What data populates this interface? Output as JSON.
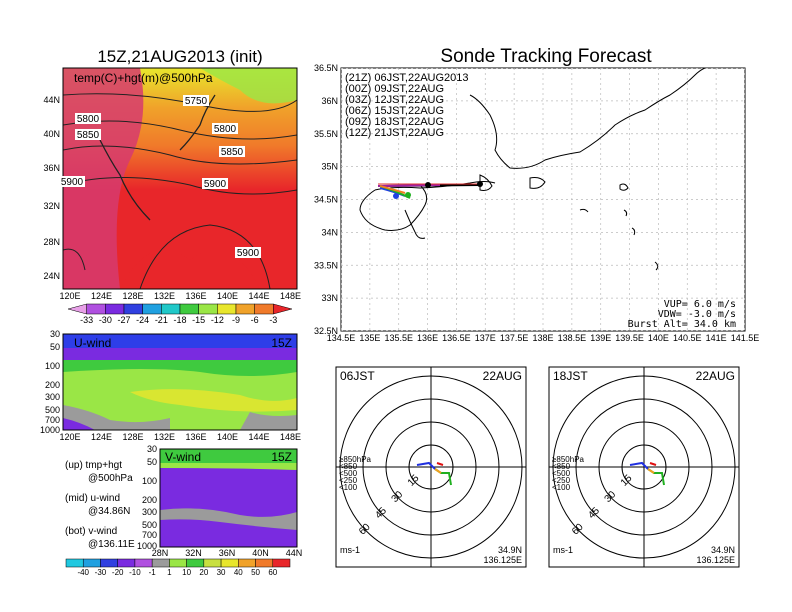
{
  "titles": {
    "left": "15Z,21AUG2013 (init)",
    "right": "Sonde Tracking Forecast"
  },
  "colors": {
    "warm_red": "#e8262a",
    "warm_magenta": "#d63b6f",
    "orange": "#f07a2a",
    "yellow": "#e8e62c",
    "light_green": "#9ae646",
    "green": "#3fca3f",
    "blue": "#2e3ee8",
    "purple": "#7a2be0",
    "gray": "#9b9b9b"
  },
  "top_map": {
    "label": "temp(C)+hgt(m)@500hPa",
    "lat_labels": [
      "44N",
      "40N",
      "36N",
      "32N",
      "28N",
      "24N"
    ],
    "lon_labels": [
      "120E",
      "124E",
      "128E",
      "132E",
      "136E",
      "140E",
      "144E",
      "148E"
    ],
    "contours": [
      "5750",
      "5800",
      "5800",
      "5850",
      "5850",
      "5900",
      "5900",
      "5900"
    ],
    "colorbar": [
      "-33",
      "-30",
      "-27",
      "-24",
      "-21",
      "-18",
      "-15",
      "-12",
      "-9",
      "-6",
      "-3"
    ]
  },
  "uwind": {
    "label": "U-wind",
    "time": "15Z",
    "p_labels": [
      "30",
      "50",
      "100",
      "200",
      "300",
      "500",
      "700",
      "1000"
    ],
    "lon_labels": [
      "120E",
      "124E",
      "128E",
      "132E",
      "136E",
      "140E",
      "144E",
      "148E"
    ]
  },
  "vwind": {
    "label": "V-wind",
    "time": "15Z",
    "p_labels": [
      "30",
      "50",
      "100",
      "200",
      "300",
      "500",
      "700",
      "1000"
    ],
    "lat_labels": [
      "28N",
      "32N",
      "36N",
      "40N",
      "44N"
    ]
  },
  "wind_colorbar": [
    "-40",
    "-30",
    "-20",
    "-10",
    "-1",
    "1",
    "10",
    "20",
    "30",
    "40",
    "50",
    "60"
  ],
  "legend_notes": {
    "up1": "(up) tmp+hgt",
    "up2": "@500hPa",
    "mid1": "(mid) u-wind",
    "mid2": "@34.86N",
    "bot1": "(bot) v-wind",
    "bot2": "@136.11E"
  },
  "track_map": {
    "lat_labels": [
      "36.5N",
      "36N",
      "35.5N",
      "35N",
      "34.5N",
      "34N",
      "33.5N",
      "33N",
      "32.5N"
    ],
    "lon_labels": [
      "134.5E",
      "135E",
      "135.5E",
      "136E",
      "136.5E",
      "137E",
      "137.5E",
      "138E",
      "138.5E",
      "139E",
      "139.5E",
      "140E",
      "140.5E",
      "141E",
      "141.5E"
    ],
    "legend": [
      {
        "text": "(21Z) 06JST,22AUG2013",
        "color": "#000000"
      },
      {
        "text": "(00Z) 09JST,22AUG",
        "color": "#a020a0"
      },
      {
        "text": "(03Z) 12JST,22AUG",
        "color": "#2040e0"
      },
      {
        "text": "(06Z) 15JST,22AUG",
        "color": "#20b020"
      },
      {
        "text": "(09Z) 18JST,22AUG",
        "color": "#e0c000"
      },
      {
        "text": "(12Z) 21JST,22AUG",
        "color": "#f08020"
      }
    ],
    "params": {
      "vup": "VUP= 6.0 m/s",
      "vdw": "VDW= -3.0 m/s",
      "burst": "Burst Alt= 34.0 km"
    }
  },
  "hodo_left": {
    "time": "06JST",
    "date": "22AUG",
    "rings": [
      "15",
      "30",
      "45",
      "60"
    ],
    "levels": [
      {
        "text": "≥850hPa",
        "color": "#e01010"
      },
      {
        "text": "<850",
        "color": "#f0a020"
      },
      {
        "text": "<500",
        "color": "#20b020"
      },
      {
        "text": "<250",
        "color": "#20a0e0"
      },
      {
        "text": "<100",
        "color": "#2030e0"
      }
    ],
    "unit": "ms-1",
    "lat": "34.9N",
    "lon": "136.125E"
  },
  "hodo_right": {
    "time": "18JST",
    "date": "22AUG",
    "rings": [
      "15",
      "30",
      "45",
      "60"
    ],
    "levels": [
      {
        "text": "≥850hPa",
        "color": "#e01010"
      },
      {
        "text": "<850",
        "color": "#f0a020"
      },
      {
        "text": "<500",
        "color": "#20b020"
      },
      {
        "text": "<250",
        "color": "#20a0e0"
      },
      {
        "text": "<100",
        "color": "#2030e0"
      }
    ],
    "unit": "ms-1",
    "lat": "34.9N",
    "lon": "136.125E"
  }
}
